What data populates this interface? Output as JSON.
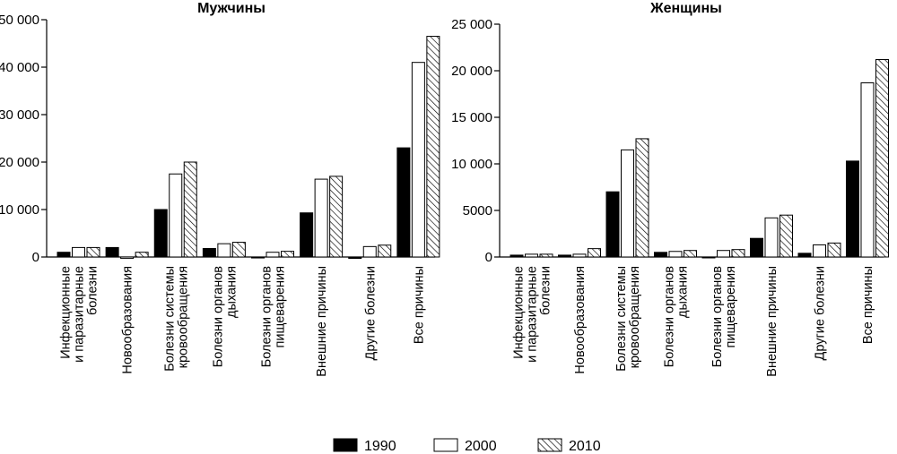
{
  "legend": {
    "items": [
      {
        "label": "1990",
        "fill": "solid-black"
      },
      {
        "label": "2000",
        "fill": "white"
      },
      {
        "label": "2010",
        "fill": "hatched"
      }
    ]
  },
  "chart_data": [
    {
      "type": "bar",
      "title": "Мужчины",
      "ylim": [
        0,
        50000
      ],
      "yticks": [
        0,
        10000,
        20000,
        30000,
        40000,
        50000
      ],
      "ytick_labels": [
        "0",
        "10 000",
        "20 000",
        "30 000",
        "40 000",
        "50 000"
      ],
      "grid": false,
      "legend_position": "bottom",
      "categories": [
        [
          "Инфекционные",
          "и паразитарные",
          "болезни"
        ],
        [
          "Новообразования"
        ],
        [
          "Болезни системы",
          "кровообращения"
        ],
        [
          "Болезни органов",
          "дыхания"
        ],
        [
          "Болезни органов",
          "пищеварения"
        ],
        [
          "Внешние причины"
        ],
        [
          "Другие болезни"
        ],
        [
          "Все причины"
        ]
      ],
      "series": [
        {
          "name": "1990",
          "values": [
            1000,
            2000,
            10000,
            1800,
            -200,
            9300,
            -300,
            23000
          ]
        },
        {
          "name": "2000",
          "values": [
            2000,
            -300,
            17500,
            2800,
            1000,
            16400,
            2200,
            41000
          ]
        },
        {
          "name": "2010",
          "values": [
            2000,
            1000,
            20000,
            3100,
            1200,
            17000,
            2500,
            46500
          ]
        }
      ]
    },
    {
      "type": "bar",
      "title": "Женщины",
      "ylim": [
        0,
        25000
      ],
      "yticks": [
        0,
        5000,
        10000,
        15000,
        20000,
        25000
      ],
      "ytick_labels": [
        "0",
        "5000",
        "10 000",
        "15 000",
        "20 000",
        "25 000"
      ],
      "grid": false,
      "legend_position": "bottom",
      "categories": [
        [
          "Инфекционные",
          "и паразитарные",
          "болезни"
        ],
        [
          "Новообразования"
        ],
        [
          "Болезни системы",
          "кровообращения"
        ],
        [
          "Болезни органов",
          "дыхания"
        ],
        [
          "Болезни органов",
          "пищеварения"
        ],
        [
          "Внешние причины"
        ],
        [
          "Другие болезни"
        ],
        [
          "Все причины"
        ]
      ],
      "series": [
        {
          "name": "1990",
          "values": [
            200,
            200,
            7000,
            500,
            0,
            2000,
            400,
            10300
          ]
        },
        {
          "name": "2000",
          "values": [
            300,
            300,
            11500,
            600,
            700,
            4200,
            1300,
            18700
          ]
        },
        {
          "name": "2010",
          "values": [
            300,
            900,
            12700,
            700,
            800,
            4500,
            1500,
            21200
          ]
        }
      ]
    }
  ]
}
